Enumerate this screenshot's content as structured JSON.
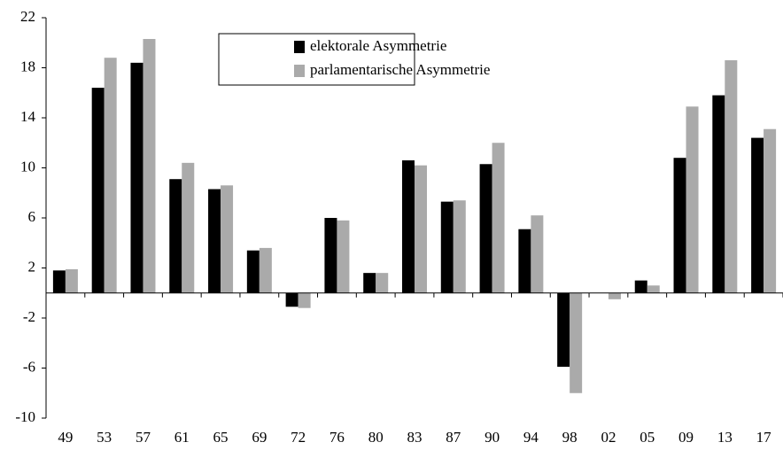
{
  "chart_data": {
    "type": "bar",
    "categories": [
      "49",
      "53",
      "57",
      "61",
      "65",
      "69",
      "72",
      "76",
      "80",
      "83",
      "87",
      "90",
      "94",
      "98",
      "02",
      "05",
      "09",
      "13",
      "17"
    ],
    "series": [
      {
        "name": "elektorale Asymmetrie",
        "color": "#000000",
        "values": [
          1.8,
          16.4,
          18.4,
          9.1,
          8.3,
          3.4,
          -1.1,
          6.0,
          1.6,
          10.6,
          7.3,
          10.3,
          5.1,
          -5.9,
          0,
          1.0,
          10.8,
          15.8,
          12.4
        ]
      },
      {
        "name": "parlamentarische Asymmetrie",
        "color": "#aaaaaa",
        "values": [
          1.9,
          18.8,
          20.3,
          10.4,
          8.6,
          3.6,
          -1.2,
          5.8,
          1.6,
          10.2,
          7.4,
          12.0,
          6.2,
          -8.0,
          -0.5,
          0.6,
          14.9,
          18.6,
          13.1
        ]
      }
    ],
    "ylim": [
      -10,
      22
    ],
    "yticks": [
      -10,
      -6,
      -2,
      2,
      6,
      10,
      14,
      18,
      22
    ],
    "grid": false,
    "legend": "top"
  }
}
